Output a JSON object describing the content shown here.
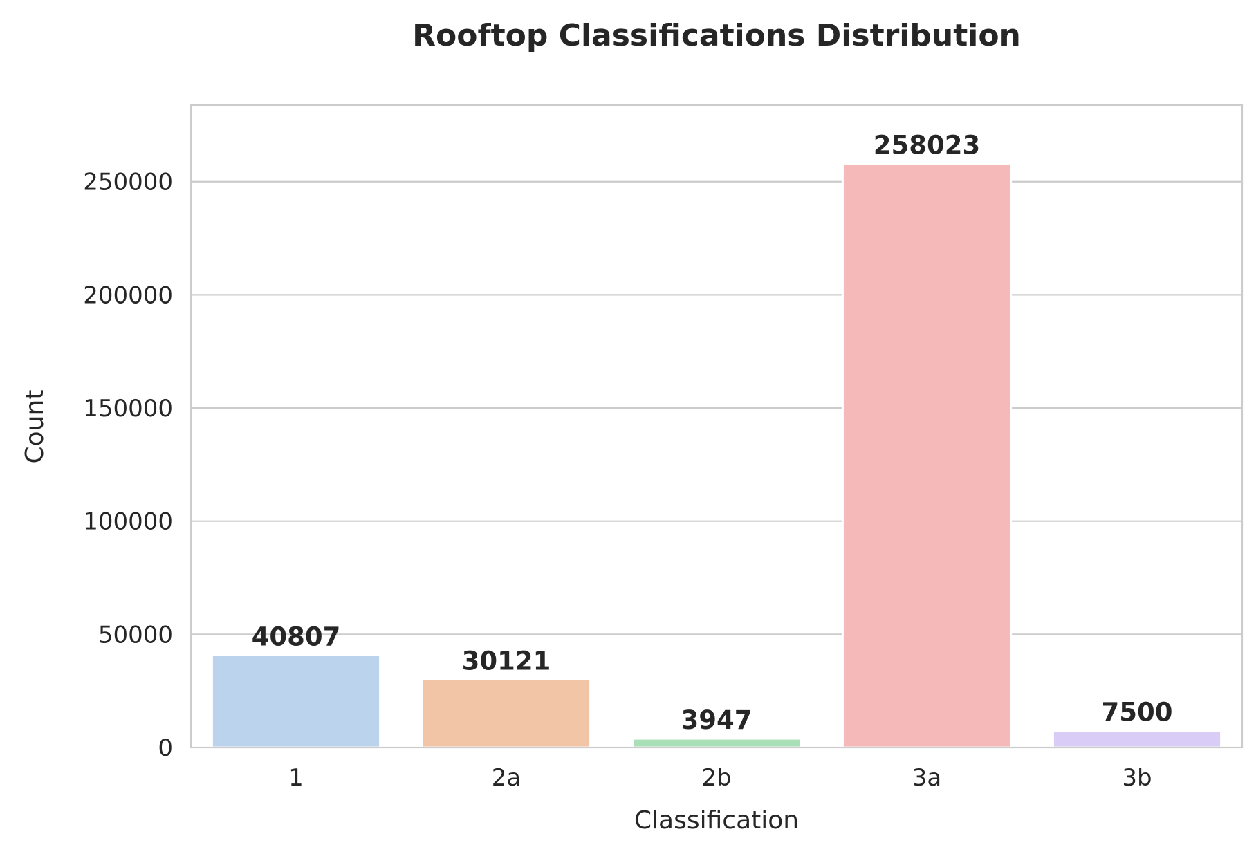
{
  "chart_data": {
    "type": "bar",
    "title": "Rooftop Classifications Distribution",
    "xlabel": "Classification",
    "ylabel": "Count",
    "categories": [
      "1",
      "2a",
      "2b",
      "3a",
      "3b"
    ],
    "values": [
      40807,
      30121,
      3947,
      258023,
      7500
    ],
    "data_labels": [
      "40807",
      "30121",
      "3947",
      "258023",
      "7500"
    ],
    "colors": [
      "#bcd3ee",
      "#f3c5a7",
      "#a9e0b8",
      "#f6b9b9",
      "#d9cdf7"
    ],
    "ylim": [
      0,
      283825
    ],
    "yticks": [
      0,
      50000,
      100000,
      150000,
      200000,
      250000
    ],
    "ytick_labels": [
      "0",
      "50000",
      "100000",
      "150000",
      "200000",
      "250000"
    ],
    "grid": true
  }
}
